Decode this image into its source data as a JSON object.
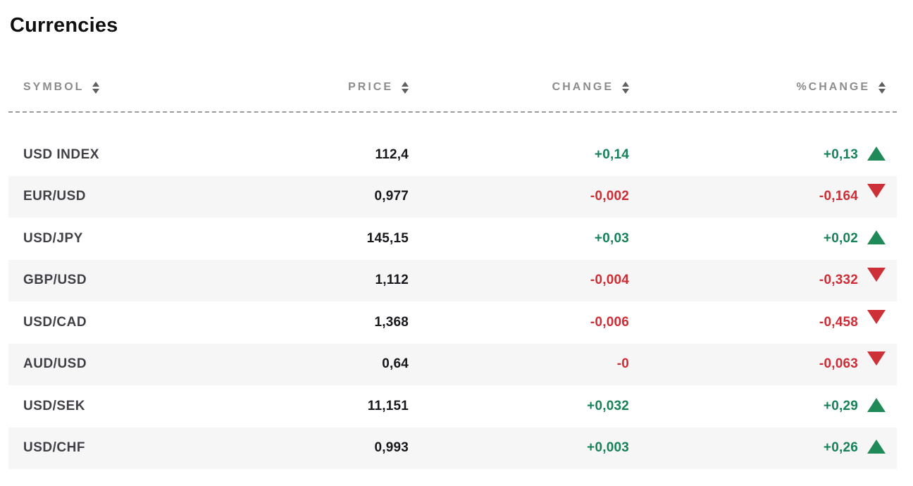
{
  "widget": {
    "title": "Currencies"
  },
  "colors": {
    "positive_text": "#17825a",
    "negative_text": "#ce2d35",
    "positive_triangle": "#1f8a57",
    "negative_triangle": "#cd3036",
    "header_text": "#8c8c8c",
    "row_alt_background": "#f6f6f6",
    "divider": "#9b9b9b"
  },
  "table": {
    "columns": [
      {
        "key": "symbol",
        "label": "SYMBOL",
        "align": "left",
        "sortable": true
      },
      {
        "key": "price",
        "label": "PRICE",
        "align": "right",
        "sortable": true
      },
      {
        "key": "change",
        "label": "CHANGE",
        "align": "right",
        "sortable": true
      },
      {
        "key": "pct_change",
        "label": "%CHANGE",
        "align": "right",
        "sortable": true
      }
    ],
    "rows": [
      {
        "symbol": "USD INDEX",
        "price": "112,4",
        "change": "+0,14",
        "pct_change": "+0,13",
        "direction": "up"
      },
      {
        "symbol": "EUR/USD",
        "price": "0,977",
        "change": "-0,002",
        "pct_change": "-0,164",
        "direction": "down"
      },
      {
        "symbol": "USD/JPY",
        "price": "145,15",
        "change": "+0,03",
        "pct_change": "+0,02",
        "direction": "up"
      },
      {
        "symbol": "GBP/USD",
        "price": "1,112",
        "change": "-0,004",
        "pct_change": "-0,332",
        "direction": "down"
      },
      {
        "symbol": "USD/CAD",
        "price": "1,368",
        "change": "-0,006",
        "pct_change": "-0,458",
        "direction": "down"
      },
      {
        "symbol": "AUD/USD",
        "price": "0,64",
        "change": "-0",
        "pct_change": "-0,063",
        "direction": "down"
      },
      {
        "symbol": "USD/SEK",
        "price": "11,151",
        "change": "+0,032",
        "pct_change": "+0,29",
        "direction": "up"
      },
      {
        "symbol": "USD/CHF",
        "price": "0,993",
        "change": "+0,003",
        "pct_change": "+0,26",
        "direction": "up"
      }
    ]
  }
}
